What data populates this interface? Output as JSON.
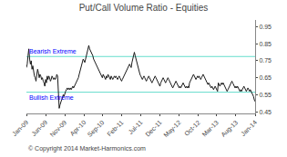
{
  "chart_data": {
    "type": "line",
    "title": "Put/Call Volume Ratio - Equities",
    "categories": [
      "Jan-09",
      null,
      null,
      null,
      null,
      null,
      null,
      null,
      null,
      null,
      null,
      null,
      null,
      null,
      null,
      null,
      null,
      null,
      null,
      null,
      null,
      null,
      null,
      null,
      "Jun-09",
      null,
      null,
      null,
      null,
      null,
      null,
      null,
      null,
      null,
      null,
      null,
      null,
      null,
      null,
      null,
      null,
      null,
      null,
      null,
      null,
      null,
      null,
      null,
      "Nov-09",
      null,
      null,
      null,
      null,
      null,
      null,
      null,
      null,
      null,
      null,
      null,
      null,
      null,
      null,
      null,
      null,
      null,
      null,
      null,
      null,
      null,
      null,
      null,
      "Apr-10",
      null,
      null,
      null,
      null,
      null,
      null,
      null,
      null,
      null,
      null,
      null,
      null,
      null,
      null,
      null,
      null,
      null,
      null,
      null,
      null,
      null,
      null,
      "Sep-10",
      null,
      null,
      null,
      null,
      null,
      null,
      null,
      null,
      null,
      null,
      null,
      null,
      null,
      null,
      null,
      null,
      null,
      null,
      null,
      null,
      null,
      null,
      null,
      "Feb-11",
      null,
      null,
      null,
      null,
      null,
      null,
      null,
      null,
      null,
      null,
      null,
      null,
      null,
      null,
      null,
      null,
      null,
      null,
      null,
      null,
      null,
      null,
      null,
      "Jul-11",
      null,
      null,
      null,
      null,
      null,
      null,
      null,
      null,
      null,
      null,
      null,
      null,
      null,
      null,
      null,
      null,
      null,
      null,
      null,
      null,
      null,
      null,
      null,
      "Dec-11",
      null,
      null,
      null,
      null,
      null,
      null,
      null,
      null,
      null,
      null,
      null,
      null,
      null,
      null,
      null,
      null,
      null,
      null,
      null,
      null,
      null,
      null,
      null,
      "May-12",
      null,
      null,
      null,
      null,
      null,
      null,
      null,
      null,
      null,
      null,
      null,
      null,
      null,
      null,
      null,
      null,
      null,
      null,
      null,
      null,
      null,
      null,
      null,
      "Oct-12",
      null,
      null,
      null,
      null,
      null,
      null,
      null,
      null,
      null,
      null,
      null,
      null,
      null,
      null,
      null,
      null,
      null,
      null,
      null,
      null,
      null,
      null,
      "Mar-13",
      null,
      null,
      null,
      null,
      null,
      null,
      null,
      null,
      null,
      null,
      null,
      null,
      null,
      null,
      null,
      null,
      null,
      null,
      null,
      null,
      null,
      null,
      null,
      "Aug-13",
      null,
      null,
      null,
      null,
      null,
      null,
      null,
      null,
      null,
      null,
      null,
      null,
      null,
      null,
      null,
      null,
      null,
      null,
      null,
      null,
      null,
      null,
      null,
      "Jan-14"
    ],
    "series": [
      {
        "color": "#1a1a1a",
        "values": [
          0.71,
          0.73,
          0.78,
          0.82,
          0.76,
          0.73,
          0.75,
          0.7,
          0.72,
          0.68,
          0.66,
          0.65,
          0.63,
          0.67,
          0.7,
          0.68,
          0.65,
          0.67,
          0.66,
          0.64,
          0.65,
          0.63,
          0.62,
          0.6,
          0.64,
          0.62,
          0.66,
          0.64,
          0.66,
          0.65,
          0.63,
          0.64,
          0.66,
          0.65,
          0.64,
          0.65,
          0.64,
          0.65,
          0.67,
          0.66,
          0.5,
          0.47,
          0.49,
          0.51,
          0.52,
          0.53,
          0.55,
          0.54,
          0.56,
          0.57,
          0.58,
          0.59,
          0.58,
          0.59,
          0.58,
          0.59,
          0.58,
          0.59,
          0.6,
          0.59,
          0.6,
          0.61,
          0.62,
          0.63,
          0.64,
          0.65,
          0.67,
          0.69,
          0.7,
          0.72,
          0.74,
          0.76,
          0.75,
          0.74,
          0.76,
          0.78,
          0.8,
          0.82,
          0.84,
          0.82,
          0.81,
          0.8,
          0.79,
          0.78,
          0.76,
          0.75,
          0.74,
          0.73,
          0.72,
          0.71,
          0.7,
          0.69,
          0.68,
          0.67,
          0.66,
          0.65,
          0.67,
          0.66,
          0.65,
          0.64,
          0.66,
          0.65,
          0.67,
          0.66,
          0.65,
          0.64,
          0.66,
          0.65,
          0.64,
          0.65,
          0.66,
          0.65,
          0.66,
          0.65,
          0.64,
          0.65,
          0.66,
          0.65,
          0.64,
          0.63,
          0.64,
          0.65,
          0.66,
          0.67,
          0.68,
          0.69,
          0.7,
          0.71,
          0.72,
          0.73,
          0.72,
          0.71,
          0.74,
          0.76,
          0.78,
          0.8,
          0.78,
          0.76,
          0.74,
          0.72,
          0.7,
          0.68,
          0.67,
          0.66,
          0.65,
          0.64,
          0.65,
          0.66,
          0.65,
          0.64,
          0.63,
          0.64,
          0.65,
          0.66,
          0.65,
          0.64,
          0.63,
          0.62,
          0.63,
          0.64,
          0.65,
          0.66,
          0.65,
          0.64,
          0.63,
          0.62,
          0.61,
          0.6,
          0.62,
          0.63,
          0.64,
          0.65,
          0.64,
          0.63,
          0.62,
          0.63,
          0.64,
          0.65,
          0.64,
          0.63,
          0.62,
          0.61,
          0.6,
          0.59,
          0.6,
          0.61,
          0.62,
          0.63,
          0.62,
          0.61,
          0.6,
          0.59,
          0.6,
          0.59,
          0.6,
          0.61,
          0.62,
          0.61,
          0.6,
          0.59,
          0.6,
          0.59,
          0.6,
          0.59,
          0.62,
          0.63,
          0.64,
          0.65,
          0.66,
          0.67,
          0.66,
          0.65,
          0.64,
          0.65,
          0.66,
          0.65,
          0.66,
          0.65,
          0.64,
          0.65,
          0.66,
          0.67,
          0.66,
          0.65,
          0.64,
          0.63,
          0.62,
          0.61,
          0.62,
          0.61,
          0.6,
          0.59,
          0.6,
          0.59,
          0.58,
          0.59,
          0.6,
          0.59,
          0.58,
          0.57,
          0.62,
          0.61,
          0.6,
          0.61,
          0.62,
          0.61,
          0.62,
          0.61,
          0.6,
          0.59,
          0.58,
          0.57,
          0.58,
          0.59,
          0.6,
          0.61,
          0.62,
          0.63,
          0.62,
          0.61,
          0.6,
          0.59,
          0.6,
          0.59,
          0.6,
          0.59,
          0.58,
          0.57,
          0.58,
          0.57,
          0.58,
          0.59,
          0.6,
          0.59,
          0.58,
          0.57,
          0.58,
          0.59,
          0.58,
          0.57,
          0.58,
          0.57,
          0.56,
          0.55,
          0.54,
          0.52,
          0.51
        ]
      }
    ],
    "reference_lines": [
      {
        "value": 0.775,
        "label": "Bearish Extreme",
        "color": "#66ddcc"
      },
      {
        "value": 0.565,
        "label": "Bullish Extreme",
        "color": "#66ddcc"
      }
    ],
    "annotations": [
      "© Copyright 2014 Market-Harmonics.com"
    ],
    "ylim": [
      0.44,
      0.99
    ],
    "yticks": [
      0.45,
      0.55,
      0.65,
      0.75,
      0.85,
      0.95
    ],
    "grid": false
  }
}
